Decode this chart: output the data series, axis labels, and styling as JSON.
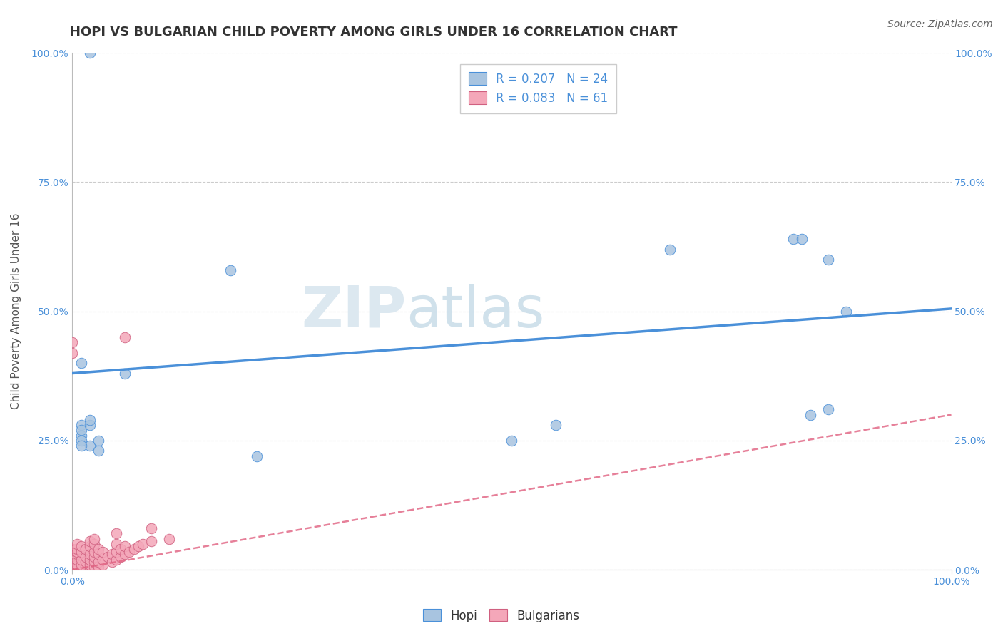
{
  "title": "HOPI VS BULGARIAN CHILD POVERTY AMONG GIRLS UNDER 16 CORRELATION CHART",
  "source": "Source: ZipAtlas.com",
  "xlabel": "",
  "ylabel": "Child Poverty Among Girls Under 16",
  "xlim": [
    0.0,
    1.0
  ],
  "ylim": [
    0.0,
    1.0
  ],
  "xtick_labels": [
    "0.0%",
    "100.0%"
  ],
  "ytick_labels": [
    "0.0%",
    "25.0%",
    "50.0%",
    "75.0%",
    "100.0%"
  ],
  "ytick_positions": [
    0.0,
    0.25,
    0.5,
    0.75,
    1.0
  ],
  "hopi_color": "#a8c4e0",
  "bulgarian_color": "#f4a7b9",
  "hopi_line_color": "#4a90d9",
  "bulgarian_line_color": "#e06080",
  "hopi_R": 0.207,
  "hopi_N": 24,
  "bulgarian_R": 0.083,
  "bulgarian_N": 61,
  "background_color": "#ffffff",
  "watermark_zip": "ZIP",
  "watermark_atlas": "atlas",
  "hopi_x": [
    0.01,
    0.06,
    0.01,
    0.01,
    0.01,
    0.01,
    0.02,
    0.03,
    0.03,
    0.01,
    0.02,
    0.02,
    0.18,
    0.21,
    0.5,
    0.82,
    0.83,
    0.84,
    0.86,
    0.86,
    0.88,
    0.55,
    0.68,
    0.02
  ],
  "hopi_y": [
    0.4,
    0.38,
    0.28,
    0.26,
    0.27,
    0.25,
    0.24,
    0.25,
    0.23,
    0.24,
    0.28,
    0.29,
    0.58,
    0.22,
    0.25,
    0.64,
    0.64,
    0.3,
    0.31,
    0.6,
    0.5,
    0.28,
    0.62,
    1.0
  ],
  "bulgarian_x": [
    0.0,
    0.0,
    0.0,
    0.0,
    0.0,
    0.005,
    0.005,
    0.005,
    0.005,
    0.005,
    0.005,
    0.005,
    0.01,
    0.01,
    0.01,
    0.01,
    0.01,
    0.015,
    0.015,
    0.015,
    0.015,
    0.02,
    0.02,
    0.02,
    0.02,
    0.02,
    0.02,
    0.025,
    0.025,
    0.025,
    0.025,
    0.025,
    0.025,
    0.03,
    0.03,
    0.03,
    0.03,
    0.035,
    0.035,
    0.035,
    0.04,
    0.045,
    0.045,
    0.05,
    0.05,
    0.05,
    0.055,
    0.055,
    0.06,
    0.06,
    0.065,
    0.07,
    0.075,
    0.08,
    0.09,
    0.05,
    0.06,
    0.09,
    0.11,
    0.0,
    0.0
  ],
  "bulgarian_y": [
    0.0,
    0.015,
    0.025,
    0.03,
    0.04,
    0.0,
    0.01,
    0.02,
    0.03,
    0.035,
    0.04,
    0.05,
    0.0,
    0.01,
    0.02,
    0.035,
    0.045,
    0.005,
    0.015,
    0.025,
    0.04,
    0.0,
    0.01,
    0.02,
    0.03,
    0.045,
    0.055,
    0.005,
    0.015,
    0.025,
    0.035,
    0.05,
    0.06,
    0.005,
    0.015,
    0.03,
    0.04,
    0.01,
    0.02,
    0.035,
    0.025,
    0.015,
    0.03,
    0.02,
    0.035,
    0.05,
    0.025,
    0.04,
    0.03,
    0.045,
    0.035,
    0.04,
    0.045,
    0.05,
    0.055,
    0.07,
    0.45,
    0.08,
    0.06,
    0.42,
    0.44
  ],
  "title_fontsize": 13,
  "label_fontsize": 11,
  "tick_fontsize": 10,
  "legend_fontsize": 12,
  "source_fontsize": 10,
  "hopi_trendline_intercept": 0.38,
  "hopi_trendline_slope": 0.125,
  "bulgarian_trendline_intercept": 0.0,
  "bulgarian_trendline_slope": 0.3
}
